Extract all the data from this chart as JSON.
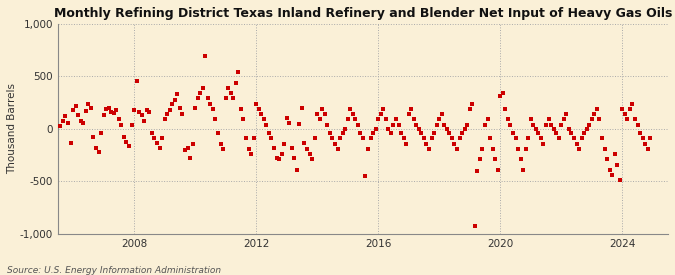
{
  "title": "Monthly Refining District Texas Inland Refinery and Blender Net Input of Heavy Gas Oils",
  "ylabel": "Thousand Barrels",
  "source": "Source: U.S. Energy Information Administration",
  "background_color": "#FAF0D7",
  "dot_color": "#CC0000",
  "dot_size": 5,
  "ylim": [
    -1000,
    1000
  ],
  "yticks": [
    -1000,
    -500,
    0,
    500,
    1000
  ],
  "ytick_labels": [
    "-1,000",
    "-500",
    "0",
    "500",
    "1,000"
  ],
  "xticks": [
    2008,
    2012,
    2016,
    2020,
    2024
  ],
  "xlim": [
    2005.5,
    2025.5
  ],
  "data_points": [
    [
      2005.583,
      30
    ],
    [
      2005.667,
      80
    ],
    [
      2005.75,
      120
    ],
    [
      2005.833,
      60
    ],
    [
      2005.917,
      -130
    ],
    [
      2006.0,
      180
    ],
    [
      2006.083,
      220
    ],
    [
      2006.167,
      130
    ],
    [
      2006.25,
      80
    ],
    [
      2006.333,
      60
    ],
    [
      2006.417,
      170
    ],
    [
      2006.5,
      240
    ],
    [
      2006.583,
      200
    ],
    [
      2006.667,
      -80
    ],
    [
      2006.75,
      -180
    ],
    [
      2006.833,
      -220
    ],
    [
      2006.917,
      -40
    ],
    [
      2007.0,
      130
    ],
    [
      2007.083,
      190
    ],
    [
      2007.167,
      200
    ],
    [
      2007.25,
      160
    ],
    [
      2007.333,
      150
    ],
    [
      2007.417,
      180
    ],
    [
      2007.5,
      90
    ],
    [
      2007.583,
      40
    ],
    [
      2007.667,
      -80
    ],
    [
      2007.75,
      -120
    ],
    [
      2007.833,
      -160
    ],
    [
      2007.917,
      40
    ],
    [
      2008.0,
      180
    ],
    [
      2008.083,
      460
    ],
    [
      2008.167,
      160
    ],
    [
      2008.25,
      130
    ],
    [
      2008.333,
      80
    ],
    [
      2008.417,
      180
    ],
    [
      2008.5,
      160
    ],
    [
      2008.583,
      -40
    ],
    [
      2008.667,
      -90
    ],
    [
      2008.75,
      -130
    ],
    [
      2008.833,
      -180
    ],
    [
      2008.917,
      -90
    ],
    [
      2009.0,
      90
    ],
    [
      2009.083,
      140
    ],
    [
      2009.167,
      180
    ],
    [
      2009.25,
      240
    ],
    [
      2009.333,
      280
    ],
    [
      2009.417,
      330
    ],
    [
      2009.5,
      200
    ],
    [
      2009.583,
      140
    ],
    [
      2009.667,
      -200
    ],
    [
      2009.75,
      -180
    ],
    [
      2009.833,
      -280
    ],
    [
      2009.917,
      -140
    ],
    [
      2010.0,
      200
    ],
    [
      2010.083,
      290
    ],
    [
      2010.167,
      340
    ],
    [
      2010.25,
      390
    ],
    [
      2010.333,
      690
    ],
    [
      2010.417,
      290
    ],
    [
      2010.5,
      240
    ],
    [
      2010.583,
      190
    ],
    [
      2010.667,
      90
    ],
    [
      2010.75,
      -40
    ],
    [
      2010.833,
      -140
    ],
    [
      2010.917,
      -190
    ],
    [
      2011.0,
      290
    ],
    [
      2011.083,
      390
    ],
    [
      2011.167,
      340
    ],
    [
      2011.25,
      290
    ],
    [
      2011.333,
      440
    ],
    [
      2011.417,
      540
    ],
    [
      2011.5,
      190
    ],
    [
      2011.583,
      90
    ],
    [
      2011.667,
      -90
    ],
    [
      2011.75,
      -190
    ],
    [
      2011.833,
      -240
    ],
    [
      2011.917,
      -90
    ],
    [
      2012.0,
      240
    ],
    [
      2012.083,
      190
    ],
    [
      2012.167,
      140
    ],
    [
      2012.25,
      90
    ],
    [
      2012.333,
      40
    ],
    [
      2012.417,
      -40
    ],
    [
      2012.5,
      -90
    ],
    [
      2012.583,
      -180
    ],
    [
      2012.667,
      -280
    ],
    [
      2012.75,
      -290
    ],
    [
      2012.833,
      -240
    ],
    [
      2012.917,
      -140
    ],
    [
      2013.0,
      100
    ],
    [
      2013.083,
      60
    ],
    [
      2013.167,
      -180
    ],
    [
      2013.25,
      -280
    ],
    [
      2013.333,
      -390
    ],
    [
      2013.417,
      50
    ],
    [
      2013.5,
      200
    ],
    [
      2013.583,
      -130
    ],
    [
      2013.667,
      -190
    ],
    [
      2013.75,
      -240
    ],
    [
      2013.833,
      -290
    ],
    [
      2013.917,
      -90
    ],
    [
      2014.0,
      140
    ],
    [
      2014.083,
      90
    ],
    [
      2014.167,
      190
    ],
    [
      2014.25,
      140
    ],
    [
      2014.333,
      40
    ],
    [
      2014.417,
      -40
    ],
    [
      2014.5,
      -90
    ],
    [
      2014.583,
      -140
    ],
    [
      2014.667,
      -190
    ],
    [
      2014.75,
      -90
    ],
    [
      2014.833,
      -40
    ],
    [
      2014.917,
      0
    ],
    [
      2015.0,
      90
    ],
    [
      2015.083,
      190
    ],
    [
      2015.167,
      140
    ],
    [
      2015.25,
      90
    ],
    [
      2015.333,
      40
    ],
    [
      2015.417,
      -40
    ],
    [
      2015.5,
      -90
    ],
    [
      2015.583,
      -450
    ],
    [
      2015.667,
      -190
    ],
    [
      2015.75,
      -90
    ],
    [
      2015.833,
      -40
    ],
    [
      2015.917,
      0
    ],
    [
      2016.0,
      90
    ],
    [
      2016.083,
      140
    ],
    [
      2016.167,
      190
    ],
    [
      2016.25,
      90
    ],
    [
      2016.333,
      0
    ],
    [
      2016.417,
      -40
    ],
    [
      2016.5,
      40
    ],
    [
      2016.583,
      90
    ],
    [
      2016.667,
      40
    ],
    [
      2016.75,
      -40
    ],
    [
      2016.833,
      -90
    ],
    [
      2016.917,
      -140
    ],
    [
      2017.0,
      140
    ],
    [
      2017.083,
      190
    ],
    [
      2017.167,
      90
    ],
    [
      2017.25,
      40
    ],
    [
      2017.333,
      0
    ],
    [
      2017.417,
      -40
    ],
    [
      2017.5,
      -90
    ],
    [
      2017.583,
      -140
    ],
    [
      2017.667,
      -190
    ],
    [
      2017.75,
      -90
    ],
    [
      2017.833,
      -40
    ],
    [
      2017.917,
      40
    ],
    [
      2018.0,
      90
    ],
    [
      2018.083,
      140
    ],
    [
      2018.167,
      40
    ],
    [
      2018.25,
      0
    ],
    [
      2018.333,
      -40
    ],
    [
      2018.417,
      -90
    ],
    [
      2018.5,
      -140
    ],
    [
      2018.583,
      -190
    ],
    [
      2018.667,
      -90
    ],
    [
      2018.75,
      -40
    ],
    [
      2018.833,
      0
    ],
    [
      2018.917,
      40
    ],
    [
      2019.0,
      190
    ],
    [
      2019.083,
      240
    ],
    [
      2019.167,
      -920
    ],
    [
      2019.25,
      -400
    ],
    [
      2019.333,
      -290
    ],
    [
      2019.417,
      -190
    ],
    [
      2019.5,
      40
    ],
    [
      2019.583,
      90
    ],
    [
      2019.667,
      -90
    ],
    [
      2019.75,
      -190
    ],
    [
      2019.833,
      -290
    ],
    [
      2019.917,
      -390
    ],
    [
      2020.0,
      310
    ],
    [
      2020.083,
      340
    ],
    [
      2020.167,
      190
    ],
    [
      2020.25,
      90
    ],
    [
      2020.333,
      40
    ],
    [
      2020.417,
      -40
    ],
    [
      2020.5,
      -90
    ],
    [
      2020.583,
      -190
    ],
    [
      2020.667,
      -290
    ],
    [
      2020.75,
      -390
    ],
    [
      2020.833,
      -190
    ],
    [
      2020.917,
      -90
    ],
    [
      2021.0,
      90
    ],
    [
      2021.083,
      40
    ],
    [
      2021.167,
      0
    ],
    [
      2021.25,
      -40
    ],
    [
      2021.333,
      -90
    ],
    [
      2021.417,
      -140
    ],
    [
      2021.5,
      40
    ],
    [
      2021.583,
      90
    ],
    [
      2021.667,
      40
    ],
    [
      2021.75,
      0
    ],
    [
      2021.833,
      -40
    ],
    [
      2021.917,
      -90
    ],
    [
      2022.0,
      40
    ],
    [
      2022.083,
      90
    ],
    [
      2022.167,
      140
    ],
    [
      2022.25,
      0
    ],
    [
      2022.333,
      -40
    ],
    [
      2022.417,
      -90
    ],
    [
      2022.5,
      -140
    ],
    [
      2022.583,
      -190
    ],
    [
      2022.667,
      -90
    ],
    [
      2022.75,
      -40
    ],
    [
      2022.833,
      0
    ],
    [
      2022.917,
      40
    ],
    [
      2023.0,
      90
    ],
    [
      2023.083,
      140
    ],
    [
      2023.167,
      190
    ],
    [
      2023.25,
      90
    ],
    [
      2023.333,
      -90
    ],
    [
      2023.417,
      -190
    ],
    [
      2023.5,
      -290
    ],
    [
      2023.583,
      -390
    ],
    [
      2023.667,
      -440
    ],
    [
      2023.75,
      -240
    ],
    [
      2023.833,
      -340
    ],
    [
      2023.917,
      -490
    ],
    [
      2024.0,
      190
    ],
    [
      2024.083,
      140
    ],
    [
      2024.167,
      90
    ],
    [
      2024.25,
      190
    ],
    [
      2024.333,
      240
    ],
    [
      2024.417,
      90
    ],
    [
      2024.5,
      40
    ],
    [
      2024.583,
      -40
    ],
    [
      2024.667,
      -90
    ],
    [
      2024.75,
      -140
    ],
    [
      2024.833,
      -190
    ],
    [
      2024.917,
      -90
    ]
  ]
}
